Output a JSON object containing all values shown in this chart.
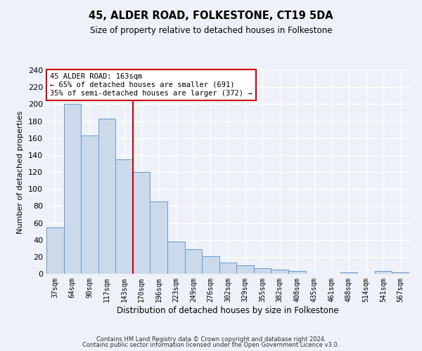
{
  "title": "45, ALDER ROAD, FOLKESTONE, CT19 5DA",
  "subtitle": "Size of property relative to detached houses in Folkestone",
  "xlabel": "Distribution of detached houses by size in Folkestone",
  "ylabel": "Number of detached properties",
  "bin_labels": [
    "37sqm",
    "64sqm",
    "90sqm",
    "117sqm",
    "143sqm",
    "170sqm",
    "196sqm",
    "223sqm",
    "249sqm",
    "276sqm",
    "302sqm",
    "329sqm",
    "355sqm",
    "382sqm",
    "408sqm",
    "435sqm",
    "461sqm",
    "488sqm",
    "514sqm",
    "541sqm",
    "567sqm"
  ],
  "bar_values": [
    55,
    200,
    163,
    183,
    135,
    120,
    85,
    38,
    29,
    21,
    13,
    10,
    7,
    5,
    3,
    0,
    0,
    2,
    0,
    3,
    2
  ],
  "bar_color": "#ccd9ea",
  "bar_edge_color": "#6699cc",
  "vline_x": 4.5,
  "vline_color": "#cc0000",
  "ylim": [
    0,
    240
  ],
  "yticks": [
    0,
    20,
    40,
    60,
    80,
    100,
    120,
    140,
    160,
    180,
    200,
    220,
    240
  ],
  "annotation_title": "45 ALDER ROAD: 163sqm",
  "annotation_line1": "← 65% of detached houses are smaller (691)",
  "annotation_line2": "35% of semi-detached houses are larger (372) →",
  "annotation_box_color": "#ffffff",
  "annotation_box_edge": "#cc0000",
  "footer_line1": "Contains HM Land Registry data © Crown copyright and database right 2024.",
  "footer_line2": "Contains public sector information licensed under the Open Government Licence v3.0.",
  "background_color": "#eef2f8",
  "grid_color": "#ffffff"
}
